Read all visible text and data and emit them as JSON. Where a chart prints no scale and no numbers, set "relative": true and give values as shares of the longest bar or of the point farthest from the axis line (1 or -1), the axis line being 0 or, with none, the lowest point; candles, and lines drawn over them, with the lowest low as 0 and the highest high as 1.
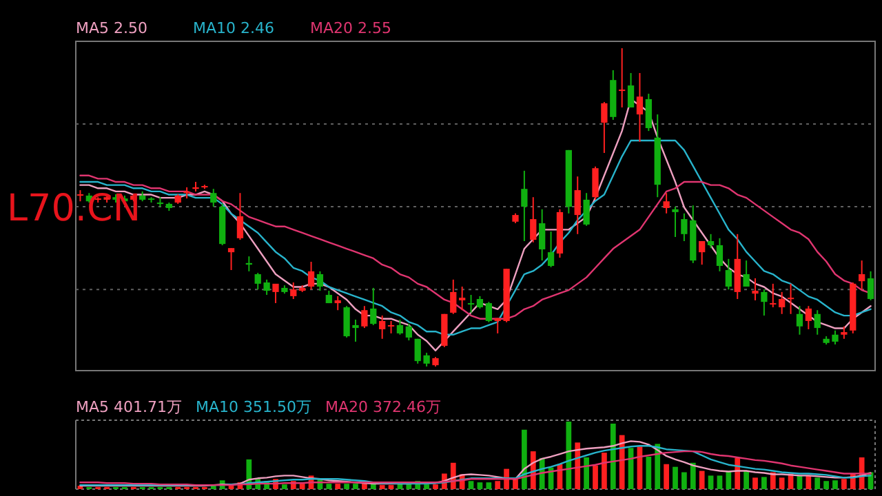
{
  "chart_data": [
    {
      "type": "candlestick",
      "relative": true,
      "legend": "top left",
      "annotations": [
        "L70.CN"
      ],
      "categories": [
        null,
        null,
        null,
        null,
        null,
        null,
        null,
        null,
        null,
        null,
        null,
        null,
        null,
        null,
        null,
        null,
        null,
        null,
        null,
        null,
        null,
        null,
        null,
        null,
        null,
        null,
        null,
        null,
        null,
        null,
        null,
        null,
        null,
        null,
        null,
        null,
        null,
        null,
        null,
        null,
        null,
        null,
        null,
        null,
        null,
        null,
        null,
        null,
        null,
        null,
        null,
        null,
        null,
        null,
        null,
        null,
        null,
        null,
        null,
        null,
        null,
        null,
        null,
        null,
        null,
        null,
        null,
        null,
        null,
        null,
        null,
        null,
        null,
        null,
        null,
        null,
        null,
        null,
        null,
        null,
        null,
        null,
        null,
        null,
        null,
        null,
        null,
        null,
        null,
        null
      ],
      "ohlc": [
        [
          0.537,
          0.554,
          0.519,
          0.541
        ],
        [
          0.537,
          0.545,
          0.515,
          0.519
        ],
        [
          0.524,
          0.532,
          0.515,
          0.528
        ],
        [
          0.524,
          0.537,
          0.515,
          0.532
        ],
        [
          0.532,
          0.541,
          0.515,
          0.524
        ],
        [
          0.528,
          0.537,
          0.511,
          0.519
        ],
        [
          0.524,
          0.541,
          0.519,
          0.537
        ],
        [
          0.537,
          0.55,
          0.519,
          0.524
        ],
        [
          0.528,
          0.532,
          0.515,
          0.524
        ],
        [
          0.515,
          0.532,
          0.502,
          0.511
        ],
        [
          0.511,
          0.515,
          0.489,
          0.498
        ],
        [
          0.515,
          0.541,
          0.511,
          0.537
        ],
        [
          0.545,
          0.563,
          0.528,
          0.55
        ],
        [
          0.558,
          0.58,
          0.55,
          0.563
        ],
        [
          0.563,
          0.571,
          0.558,
          0.567
        ],
        [
          0.545,
          0.558,
          0.502,
          0.515
        ],
        [
          0.502,
          0.511,
          0.381,
          0.385
        ],
        [
          0.359,
          0.372,
          0.303,
          0.372
        ],
        [
          0.403,
          0.545,
          0.398,
          0.472
        ],
        [
          0.325,
          0.346,
          0.299,
          0.32
        ],
        [
          0.29,
          0.294,
          0.242,
          0.26
        ],
        [
          0.264,
          0.273,
          0.225,
          0.238
        ],
        [
          0.234,
          0.26,
          0.199,
          0.26
        ],
        [
          0.247,
          0.255,
          0.229,
          0.234
        ],
        [
          0.221,
          0.264,
          0.212,
          0.242
        ],
        [
          0.238,
          0.255,
          0.234,
          0.247
        ],
        [
          0.251,
          0.329,
          0.242,
          0.299
        ],
        [
          0.29,
          0.299,
          0.238,
          0.251
        ],
        [
          0.225,
          0.238,
          0.199,
          0.199
        ],
        [
          0.199,
          0.221,
          0.177,
          0.208
        ],
        [
          0.186,
          0.19,
          0.091,
          0.095
        ],
        [
          0.13,
          0.147,
          0.078,
          0.121
        ],
        [
          0.126,
          0.19,
          0.121,
          0.177
        ],
        [
          0.182,
          0.247,
          0.13,
          0.134
        ],
        [
          0.117,
          0.16,
          0.087,
          0.143
        ],
        [
          0.126,
          0.143,
          0.104,
          0.13
        ],
        [
          0.13,
          0.147,
          0.1,
          0.104
        ],
        [
          0.126,
          0.134,
          0.082,
          0.091
        ],
        [
          0.087,
          0.087,
          0.009,
          0.017
        ],
        [
          0.035,
          0.043,
          0,
          0.009
        ],
        [
          0.004,
          0.03,
          0,
          0.026
        ],
        [
          0.065,
          0.165,
          0.061,
          0.165
        ],
        [
          0.169,
          0.273,
          0.165,
          0.234
        ],
        [
          0.208,
          0.251,
          0.177,
          0.216
        ],
        [
          0.199,
          0.225,
          0.169,
          0.195
        ],
        [
          0.212,
          0.221,
          0.182,
          0.186
        ],
        [
          0.199,
          0.203,
          0.139,
          0.143
        ],
        [
          0.143,
          0.152,
          0.104,
          0.152
        ],
        [
          0.143,
          0.307,
          0.139,
          0.307
        ],
        [
          0.455,
          0.481,
          0.45,
          0.476
        ],
        [
          0.558,
          0.615,
          0.394,
          0.502
        ],
        [
          0.398,
          0.532,
          0.39,
          0.463
        ],
        [
          0.45,
          0.494,
          0.333,
          0.368
        ],
        [
          0.359,
          0.424,
          0.312,
          0.316
        ],
        [
          0.355,
          0.494,
          0.342,
          0.485
        ],
        [
          0.68,
          0.68,
          0.481,
          0.502
        ],
        [
          0.476,
          0.597,
          0.416,
          0.554
        ],
        [
          0.524,
          0.545,
          0.442,
          0.446
        ],
        [
          0.532,
          0.628,
          0.524,
          0.623
        ],
        [
          0.766,
          0.831,
          0.671,
          0.827
        ],
        [
          0.9,
          0.931,
          0.775,
          0.784
        ],
        [
          0.866,
          1,
          0.814,
          0.87
        ],
        [
          0.883,
          0.922,
          0.814,
          0.814
        ],
        [
          0.792,
          0.922,
          0.706,
          0.848
        ],
        [
          0.84,
          0.857,
          0.74,
          0.749
        ],
        [
          0.719,
          0.792,
          0.532,
          0.571
        ],
        [
          0.498,
          0.545,
          0.481,
          0.519
        ],
        [
          0.494,
          0.502,
          0.407,
          0.485
        ],
        [
          0.463,
          0.481,
          0.394,
          0.416
        ],
        [
          0.459,
          0.506,
          0.325,
          0.333
        ],
        [
          0.359,
          0.394,
          0.32,
          0.394
        ],
        [
          0.394,
          0.416,
          0.372,
          0.381
        ],
        [
          0.381,
          0.403,
          0.299,
          0.316
        ],
        [
          0.303,
          0.338,
          0.242,
          0.251
        ],
        [
          0.234,
          0.416,
          0.212,
          0.338
        ],
        [
          0.29,
          0.333,
          0.251,
          0.251
        ],
        [
          0.229,
          0.277,
          0.208,
          0.238
        ],
        [
          0.234,
          0.242,
          0.16,
          0.203
        ],
        [
          0.195,
          0.26,
          0.186,
          0.199
        ],
        [
          0.186,
          0.234,
          0.165,
          0.212
        ],
        [
          0.212,
          0.26,
          0.165,
          0.216
        ],
        [
          0.165,
          0.19,
          0.1,
          0.126
        ],
        [
          0.143,
          0.19,
          0.117,
          0.182
        ],
        [
          0.165,
          0.177,
          0.1,
          0.121
        ],
        [
          0.087,
          0.095,
          0.069,
          0.074
        ],
        [
          0.1,
          0.113,
          0.069,
          0.078
        ],
        [
          0.1,
          0.126,
          0.087,
          0.108
        ],
        [
          0.113,
          0.264,
          0.104,
          0.26
        ],
        [
          0.268,
          0.333,
          0.242,
          0.29
        ],
        [
          0.277,
          0.299,
          0.208,
          0.212
        ]
      ],
      "colors": [
        "#ff2020",
        "#10b010",
        "#ff2020",
        "#ff2020",
        "#10b010",
        "#10b010",
        "#ff2020",
        "#10b010",
        "#10b010",
        "#10b010",
        "#10b010",
        "#ff2020",
        "#ff2020",
        "#ff2020",
        "#ff2020",
        "#10b010",
        "#10b010",
        "#ff2020",
        "#ff2020",
        "#10b010",
        "#10b010",
        "#10b010",
        "#ff2020",
        "#10b010",
        "#ff2020",
        "#ff2020",
        "#ff2020",
        "#10b010",
        "#10b010",
        "#ff2020",
        "#10b010",
        "#10b010",
        "#ff2020",
        "#10b010",
        "#ff2020",
        "#ff2020",
        "#10b010",
        "#10b010",
        "#10b010",
        "#10b010",
        "#ff2020",
        "#ff2020",
        "#ff2020",
        "#ff2020",
        "#10b010",
        "#10b010",
        "#10b010",
        "#ff2020",
        "#ff2020",
        "#ff2020",
        "#10b010",
        "#ff2020",
        "#10b010",
        "#10b010",
        "#ff2020",
        "#10b010",
        "#ff2020",
        "#10b010",
        "#ff2020",
        "#ff2020",
        "#10b010",
        "#ff2020",
        "#10b010",
        "#ff2020",
        "#10b010",
        "#10b010",
        "#ff2020",
        "#10b010",
        "#10b010",
        "#10b010",
        "#ff2020",
        "#10b010",
        "#10b010",
        "#10b010",
        "#ff2020",
        "#10b010",
        "#ff2020",
        "#10b010",
        "#ff2020",
        "#ff2020",
        "#ff2020",
        "#10b010",
        "#ff2020",
        "#10b010",
        "#10b010",
        "#10b010",
        "#ff2020",
        "#ff2020",
        "#ff2020",
        "#10b010"
      ],
      "series": [
        {
          "type": "line",
          "name": "MA5 2.50",
          "color": "#eea0c0",
          "values": [
            0.57,
            0.57,
            0.56,
            0.56,
            0.55,
            0.55,
            0.54,
            0.54,
            0.54,
            0.53,
            0.53,
            0.53,
            0.54,
            0.54,
            0.55,
            0.54,
            0.52,
            0.48,
            0.45,
            0.41,
            0.37,
            0.33,
            0.29,
            0.27,
            0.25,
            0.25,
            0.26,
            0.26,
            0.25,
            0.23,
            0.21,
            0.18,
            0.16,
            0.16,
            0.15,
            0.15,
            0.14,
            0.13,
            0.1,
            0.08,
            0.05,
            0.08,
            0.11,
            0.14,
            0.17,
            0.2,
            0.19,
            0.18,
            0.21,
            0.29,
            0.37,
            0.4,
            0.43,
            0.43,
            0.43,
            0.43,
            0.45,
            0.47,
            0.53,
            0.6,
            0.67,
            0.74,
            0.84,
            0.82,
            0.8,
            0.72,
            0.65,
            0.58,
            0.5,
            0.46,
            0.42,
            0.38,
            0.34,
            0.31,
            0.29,
            0.28,
            0.26,
            0.25,
            0.23,
            0.22,
            0.2,
            0.18,
            0.16,
            0.14,
            0.13,
            0.12,
            0.12,
            0.15,
            0.17,
            0.19
          ]
        },
        {
          "type": "line",
          "name": "MA10 2.46",
          "color": "#28b4cc",
          "values": [
            0.58,
            0.58,
            0.58,
            0.57,
            0.57,
            0.57,
            0.56,
            0.56,
            0.55,
            0.55,
            0.54,
            0.54,
            0.54,
            0.53,
            0.53,
            0.53,
            0.51,
            0.48,
            0.46,
            0.44,
            0.42,
            0.39,
            0.36,
            0.34,
            0.31,
            0.3,
            0.28,
            0.27,
            0.25,
            0.24,
            0.23,
            0.22,
            0.21,
            0.2,
            0.19,
            0.17,
            0.16,
            0.14,
            0.13,
            0.11,
            0.11,
            0.1,
            0.1,
            0.11,
            0.12,
            0.12,
            0.13,
            0.14,
            0.19,
            0.24,
            0.29,
            0.3,
            0.32,
            0.35,
            0.39,
            0.42,
            0.46,
            0.49,
            0.52,
            0.54,
            0.6,
            0.66,
            0.71,
            0.71,
            0.71,
            0.71,
            0.71,
            0.71,
            0.68,
            0.63,
            0.58,
            0.53,
            0.48,
            0.43,
            0.4,
            0.36,
            0.33,
            0.3,
            0.29,
            0.27,
            0.26,
            0.24,
            0.22,
            0.21,
            0.19,
            0.17,
            0.16,
            0.16,
            0.17,
            0.18
          ]
        },
        {
          "type": "line",
          "name": "MA20 2.55",
          "color": "#e03570",
          "values": [
            0.6,
            0.6,
            0.59,
            0.59,
            0.58,
            0.58,
            0.57,
            0.57,
            0.56,
            0.56,
            0.55,
            0.55,
            0.55,
            0.54,
            0.54,
            0.54,
            0.52,
            0.51,
            0.49,
            0.47,
            0.46,
            0.45,
            0.44,
            0.44,
            0.43,
            0.42,
            0.41,
            0.4,
            0.39,
            0.38,
            0.37,
            0.36,
            0.35,
            0.34,
            0.32,
            0.31,
            0.29,
            0.28,
            0.26,
            0.25,
            0.23,
            0.21,
            0.2,
            0.18,
            0.16,
            0.15,
            0.15,
            0.15,
            0.15,
            0.16,
            0.18,
            0.19,
            0.21,
            0.22,
            0.23,
            0.24,
            0.26,
            0.28,
            0.31,
            0.34,
            0.37,
            0.39,
            0.41,
            0.43,
            0.47,
            0.51,
            0.55,
            0.56,
            0.58,
            0.58,
            0.58,
            0.57,
            0.57,
            0.56,
            0.54,
            0.53,
            0.51,
            0.49,
            0.47,
            0.45,
            0.43,
            0.42,
            0.4,
            0.36,
            0.33,
            0.29,
            0.27,
            0.26,
            0.24,
            0.23
          ]
        }
      ],
      "ref_lines": [
        {
          "axis": "y",
          "value": 0.762,
          "color": "#606060",
          "line_style": "dotted"
        },
        {
          "axis": "y",
          "value": 0.502,
          "color": "#606060",
          "line_style": "dotted"
        },
        {
          "axis": "y",
          "value": 0.242,
          "color": "#606060",
          "line_style": "dotted"
        }
      ]
    },
    {
      "type": "bar",
      "relative": true,
      "legend": "top left",
      "categories": [
        null,
        null,
        null,
        null,
        null,
        null,
        null,
        null,
        null,
        null,
        null,
        null,
        null,
        null,
        null,
        null,
        null,
        null,
        null,
        null,
        null,
        null,
        null,
        null,
        null,
        null,
        null,
        null,
        null,
        null,
        null,
        null,
        null,
        null,
        null,
        null,
        null,
        null,
        null,
        null,
        null,
        null,
        null,
        null,
        null,
        null,
        null,
        null,
        null,
        null,
        null,
        null,
        null,
        null,
        null,
        null,
        null,
        null,
        null,
        null,
        null,
        null,
        null,
        null,
        null,
        null,
        null,
        null,
        null,
        null,
        null,
        null,
        null,
        null,
        null,
        null,
        null,
        null,
        null,
        null,
        null,
        null,
        null,
        null,
        null,
        null,
        null,
        null,
        null,
        null
      ],
      "values": [
        0.05,
        0.03,
        0.03,
        0.03,
        0.03,
        0.03,
        0.03,
        0.03,
        0.03,
        0.03,
        0.03,
        0.03,
        0.03,
        0.03,
        0.03,
        0.06,
        0.13,
        0.05,
        0.1,
        0.44,
        0.15,
        0.12,
        0.15,
        0.07,
        0.12,
        0.08,
        0.2,
        0.15,
        0.08,
        0.08,
        0.08,
        0.08,
        0.08,
        0.1,
        0.06,
        0.06,
        0.08,
        0.08,
        0.12,
        0.07,
        0.07,
        0.23,
        0.39,
        0.22,
        0.12,
        0.1,
        0.1,
        0.12,
        0.3,
        0.15,
        0.88,
        0.56,
        0.46,
        0.32,
        0.37,
        1,
        0.69,
        0.47,
        0.35,
        0.54,
        0.97,
        0.8,
        0.61,
        0.63,
        0.48,
        0.67,
        0.37,
        0.33,
        0.25,
        0.39,
        0.27,
        0.2,
        0.2,
        0.27,
        0.46,
        0.27,
        0.17,
        0.18,
        0.25,
        0.17,
        0.23,
        0.2,
        0.2,
        0.17,
        0.12,
        0.13,
        0.15,
        0.23,
        0.47,
        0.25
      ],
      "colors": [
        "#ff2020",
        "#10b010",
        "#ff2020",
        "#ff2020",
        "#10b010",
        "#10b010",
        "#ff2020",
        "#10b010",
        "#10b010",
        "#10b010",
        "#10b010",
        "#ff2020",
        "#ff2020",
        "#ff2020",
        "#ff2020",
        "#10b010",
        "#10b010",
        "#ff2020",
        "#ff2020",
        "#10b010",
        "#10b010",
        "#10b010",
        "#ff2020",
        "#10b010",
        "#ff2020",
        "#ff2020",
        "#ff2020",
        "#10b010",
        "#10b010",
        "#ff2020",
        "#10b010",
        "#10b010",
        "#ff2020",
        "#10b010",
        "#ff2020",
        "#ff2020",
        "#10b010",
        "#10b010",
        "#10b010",
        "#10b010",
        "#ff2020",
        "#ff2020",
        "#ff2020",
        "#ff2020",
        "#10b010",
        "#10b010",
        "#10b010",
        "#ff2020",
        "#ff2020",
        "#ff2020",
        "#10b010",
        "#ff2020",
        "#10b010",
        "#10b010",
        "#ff2020",
        "#10b010",
        "#ff2020",
        "#10b010",
        "#ff2020",
        "#ff2020",
        "#10b010",
        "#ff2020",
        "#10b010",
        "#ff2020",
        "#10b010",
        "#10b010",
        "#ff2020",
        "#10b010",
        "#10b010",
        "#10b010",
        "#ff2020",
        "#10b010",
        "#10b010",
        "#10b010",
        "#ff2020",
        "#10b010",
        "#ff2020",
        "#10b010",
        "#ff2020",
        "#ff2020",
        "#ff2020",
        "#10b010",
        "#ff2020",
        "#10b010",
        "#10b010",
        "#10b010",
        "#ff2020",
        "#ff2020",
        "#ff2020",
        "#10b010"
      ],
      "series": [
        {
          "type": "line",
          "name": "MA5 401.71万",
          "color": "#eea0c0",
          "values": [
            0.05,
            0.05,
            0.05,
            0.05,
            0.05,
            0.05,
            0.05,
            0.05,
            0.05,
            0.05,
            0.05,
            0.05,
            0.05,
            0.05,
            0.05,
            0.06,
            0.07,
            0.07,
            0.08,
            0.14,
            0.16,
            0.17,
            0.19,
            0.2,
            0.2,
            0.18,
            0.16,
            0.15,
            0.13,
            0.12,
            0.11,
            0.1,
            0.09,
            0.08,
            0.08,
            0.08,
            0.08,
            0.08,
            0.09,
            0.09,
            0.09,
            0.12,
            0.17,
            0.21,
            0.22,
            0.21,
            0.2,
            0.18,
            0.16,
            0.15,
            0.3,
            0.39,
            0.45,
            0.48,
            0.52,
            0.56,
            0.58,
            0.6,
            0.61,
            0.62,
            0.64,
            0.68,
            0.71,
            0.7,
            0.66,
            0.58,
            0.49,
            0.44,
            0.4,
            0.35,
            0.32,
            0.29,
            0.27,
            0.26,
            0.27,
            0.27,
            0.25,
            0.24,
            0.22,
            0.22,
            0.21,
            0.2,
            0.2,
            0.19,
            0.18,
            0.17,
            0.17,
            0.18,
            0.2,
            0.24
          ]
        },
        {
          "type": "line",
          "name": "MA10 351.50万",
          "color": "#28b4cc",
          "values": [
            0.06,
            0.06,
            0.06,
            0.06,
            0.06,
            0.06,
            0.06,
            0.06,
            0.06,
            0.06,
            0.06,
            0.06,
            0.06,
            0.06,
            0.06,
            0.06,
            0.06,
            0.07,
            0.07,
            0.09,
            0.1,
            0.11,
            0.12,
            0.13,
            0.14,
            0.14,
            0.15,
            0.15,
            0.15,
            0.15,
            0.14,
            0.13,
            0.12,
            0.1,
            0.09,
            0.09,
            0.08,
            0.08,
            0.08,
            0.08,
            0.09,
            0.1,
            0.12,
            0.14,
            0.16,
            0.16,
            0.16,
            0.16,
            0.16,
            0.16,
            0.22,
            0.26,
            0.3,
            0.33,
            0.37,
            0.42,
            0.46,
            0.5,
            0.54,
            0.57,
            0.59,
            0.61,
            0.63,
            0.64,
            0.64,
            0.62,
            0.59,
            0.58,
            0.57,
            0.56,
            0.5,
            0.44,
            0.4,
            0.36,
            0.34,
            0.32,
            0.3,
            0.29,
            0.27,
            0.25,
            0.24,
            0.23,
            0.23,
            0.22,
            0.21,
            0.19,
            0.17,
            0.17,
            0.19,
            0.2
          ]
        },
        {
          "type": "line",
          "name": "MA20 372.46万",
          "color": "#e03570",
          "values": [
            0.1,
            0.1,
            0.1,
            0.09,
            0.09,
            0.09,
            0.08,
            0.08,
            0.08,
            0.07,
            0.07,
            0.07,
            0.07,
            0.06,
            0.06,
            0.06,
            0.06,
            0.06,
            0.07,
            0.07,
            0.08,
            0.08,
            0.08,
            0.09,
            0.09,
            0.09,
            0.1,
            0.1,
            0.1,
            0.1,
            0.1,
            0.1,
            0.1,
            0.1,
            0.1,
            0.1,
            0.1,
            0.1,
            0.1,
            0.1,
            0.1,
            0.11,
            0.12,
            0.13,
            0.15,
            0.15,
            0.15,
            0.15,
            0.15,
            0.15,
            0.18,
            0.21,
            0.24,
            0.26,
            0.28,
            0.3,
            0.32,
            0.34,
            0.36,
            0.39,
            0.41,
            0.43,
            0.45,
            0.48,
            0.5,
            0.52,
            0.54,
            0.55,
            0.56,
            0.56,
            0.55,
            0.52,
            0.5,
            0.49,
            0.47,
            0.45,
            0.43,
            0.42,
            0.4,
            0.38,
            0.35,
            0.33,
            0.31,
            0.29,
            0.27,
            0.25,
            0.23,
            0.23,
            0.23,
            0.23
          ]
        }
      ]
    }
  ]
}
